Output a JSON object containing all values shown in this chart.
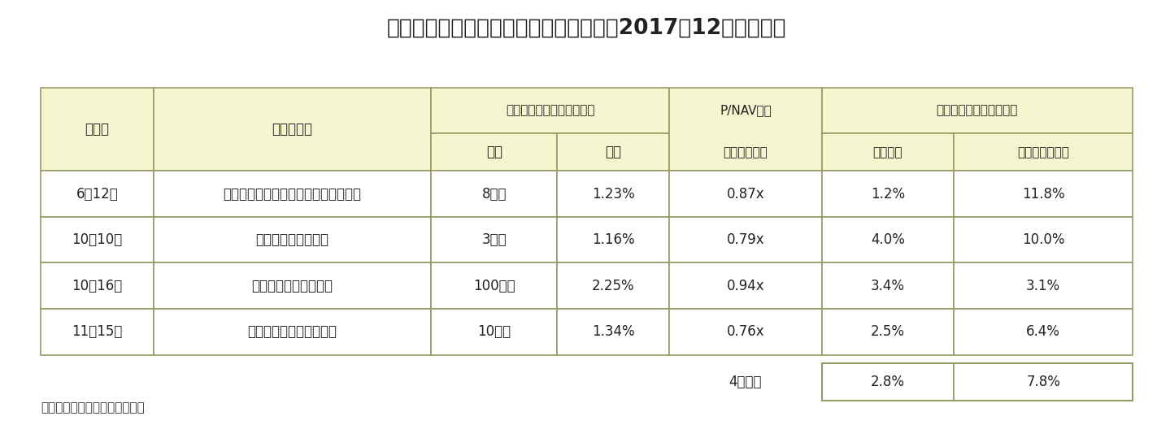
{
  "title": "図表２：自社株買い発表後の株価動向（2017年12月末時点）",
  "source_note": "（出所）開示資料をもとに作成",
  "header1_col0": "発表日",
  "header1_col1": "投資法人名",
  "header1_col2": "自社株買いの規模（上限）",
  "header1_col4": "P/NAV倍率",
  "header1_col5": "投資口価格（配当込み）",
  "header2_col2": "金額",
  "header2_col3": "比率",
  "header2_col4": "（発表時点）",
  "header2_col5": "発表翌日",
  "header2_col6": "その後の上昇率",
  "data_rows": [
    [
      "6月12日",
      "インベスコ・オフィス・ジェイリート",
      "8億円",
      "1.23%",
      "0.87x",
      "1.2%",
      "11.8%"
    ],
    [
      "10月10日",
      "いちごホテルリート",
      "3億円",
      "1.16%",
      "0.79x",
      "4.0%",
      "10.0%"
    ],
    [
      "10月16日",
      "日本リテールファンド",
      "100億円",
      "2.25%",
      "0.94x",
      "3.4%",
      "3.1%"
    ],
    [
      "11月15日",
      "グローバル・ワン不動産",
      "10億円",
      "1.34%",
      "0.76x",
      "2.5%",
      "6.4%"
    ]
  ],
  "avg_label": "4社平均",
  "avg_col5": "2.8%",
  "avg_col6": "7.8%",
  "header_bg": "#f5f5d0",
  "data_bg": "#ffffff",
  "border_color": "#999966",
  "title_color": "#222222",
  "figsize": [
    14.39,
    5.39
  ],
  "dpi": 100
}
